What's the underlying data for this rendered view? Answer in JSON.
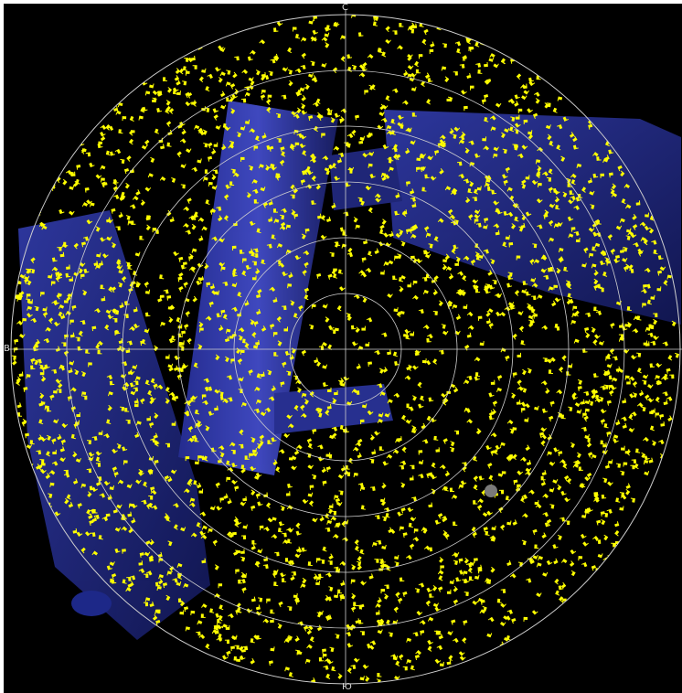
{
  "view": {
    "type": "polar-sky-view",
    "background_color": "#000000",
    "grid_color": "#d0d0d0",
    "marker_color": "#ffff00",
    "panel_color": "#2a2f9a",
    "planet_color": "#7a7a7a"
  },
  "compass": {
    "north": "С",
    "south": "Ю",
    "west": "В"
  }
}
